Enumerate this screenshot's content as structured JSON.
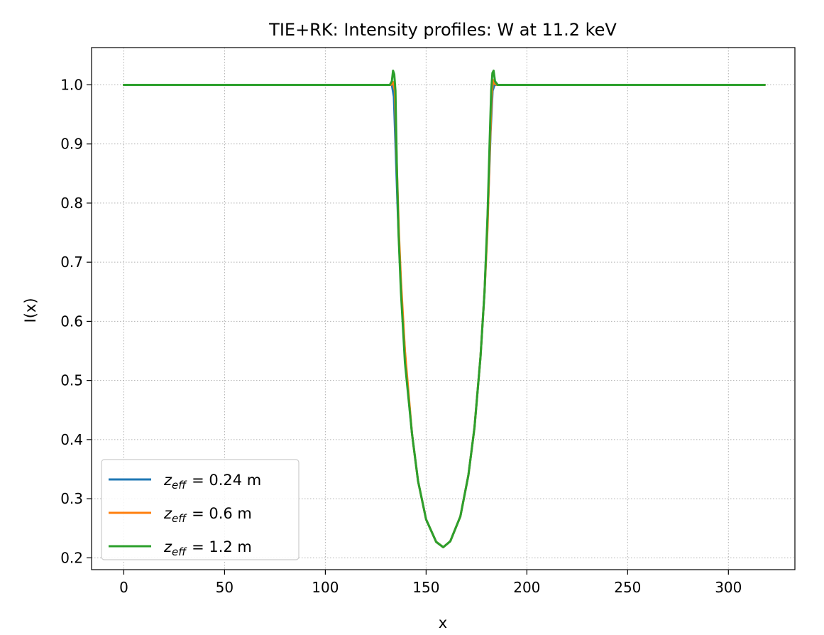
{
  "chart_data": {
    "type": "line",
    "title": "TIE+RK: Intensity profiles: W at 11.2 keV",
    "xlabel": "x",
    "ylabel": "I(x)",
    "xlim": [
      -16,
      333
    ],
    "ylim": [
      0.18,
      1.063
    ],
    "xticks": [
      0,
      50,
      100,
      150,
      200,
      250,
      300
    ],
    "xtick_labels": [
      "0",
      "50",
      "100",
      "150",
      "200",
      "250",
      "300"
    ],
    "yticks": [
      0.2,
      0.3,
      0.4,
      0.5,
      0.6,
      0.7,
      0.8,
      0.9,
      1.0
    ],
    "ytick_labels": [
      "0.2",
      "0.3",
      "0.4",
      "0.5",
      "0.6",
      "0.7",
      "0.8",
      "0.9",
      "1.0"
    ],
    "grid": true,
    "legend_position": "lower-left",
    "series": [
      {
        "name": "0.24 m",
        "label_symbol": "z",
        "label_subscript": "eff",
        "label_value": "= 0.24 m",
        "color": "#1f77b4",
        "x": [
          0,
          130,
          133,
          134,
          135,
          136,
          137,
          138,
          140,
          143,
          146,
          150,
          155,
          158.5,
          162,
          167,
          171,
          174,
          177,
          179,
          180,
          181,
          182,
          183,
          184,
          186,
          318
        ],
        "y": [
          1.0,
          1.0,
          1.0,
          0.98,
          0.88,
          0.78,
          0.7,
          0.63,
          0.52,
          0.41,
          0.33,
          0.265,
          0.227,
          0.218,
          0.228,
          0.27,
          0.34,
          0.42,
          0.54,
          0.65,
          0.73,
          0.82,
          0.92,
          0.99,
          1.0,
          1.0,
          1.0
        ]
      },
      {
        "name": "0.6 m",
        "label_symbol": "z",
        "label_subscript": "eff",
        "label_value": "= 0.6 m",
        "color": "#ff7f0e",
        "x": [
          0,
          130,
          132.5,
          133.5,
          134.5,
          135.5,
          136.5,
          137.5,
          139.5,
          143,
          146,
          150,
          155,
          158.5,
          162,
          167,
          171,
          174,
          177,
          179,
          180.5,
          181.5,
          182.5,
          183.2,
          184,
          185,
          318
        ],
        "y": [
          1.0,
          1.0,
          1.0,
          1.005,
          0.99,
          0.86,
          0.75,
          0.67,
          0.55,
          0.41,
          0.33,
          0.265,
          0.227,
          0.218,
          0.228,
          0.27,
          0.34,
          0.42,
          0.54,
          0.65,
          0.76,
          0.88,
          0.98,
          1.008,
          1.002,
          1.0,
          1.0
        ]
      },
      {
        "name": "1.2 m",
        "label_symbol": "z",
        "label_subscript": "eff",
        "label_value": "= 1.2 m",
        "color": "#2ca02c",
        "x": [
          0,
          132,
          133,
          133.6,
          134.2,
          134.8,
          135.5,
          136.3,
          137.5,
          139.5,
          143,
          146,
          150,
          155,
          158.5,
          162,
          167,
          171,
          174,
          177,
          179,
          180.5,
          181.5,
          182.3,
          182.9,
          183.5,
          184.2,
          185.5,
          318
        ],
        "y": [
          1.0,
          1.0,
          1.006,
          1.024,
          1.018,
          0.99,
          0.86,
          0.75,
          0.65,
          0.53,
          0.41,
          0.33,
          0.265,
          0.227,
          0.218,
          0.228,
          0.27,
          0.34,
          0.42,
          0.54,
          0.65,
          0.78,
          0.9,
          0.99,
          1.02,
          1.024,
          1.006,
          1.0,
          1.0
        ]
      }
    ]
  }
}
